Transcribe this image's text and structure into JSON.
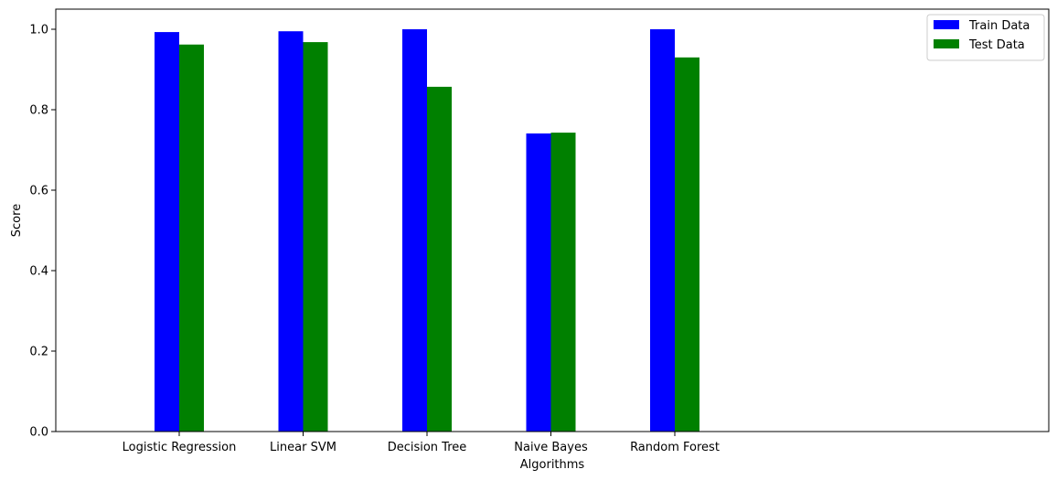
{
  "chart_data": {
    "type": "bar",
    "title": "",
    "xlabel": "Algorithms",
    "ylabel": "Score",
    "categories": [
      "Logistic Regression",
      "Linear SVM",
      "Decision Tree",
      "Naive Bayes",
      "Random Forest"
    ],
    "series": [
      {
        "name": "Train Data",
        "color": "#0000ff",
        "values": [
          0.993,
          0.995,
          1.0,
          0.741,
          1.0
        ]
      },
      {
        "name": "Test Data",
        "color": "#008000",
        "values": [
          0.962,
          0.968,
          0.857,
          0.743,
          0.93
        ]
      }
    ],
    "ylim": [
      0,
      1.05
    ],
    "yticks": [
      "0.0",
      "0.2",
      "0.4",
      "0.6",
      "0.8",
      "1.0"
    ],
    "grid": false,
    "legend_position": "top-right"
  }
}
